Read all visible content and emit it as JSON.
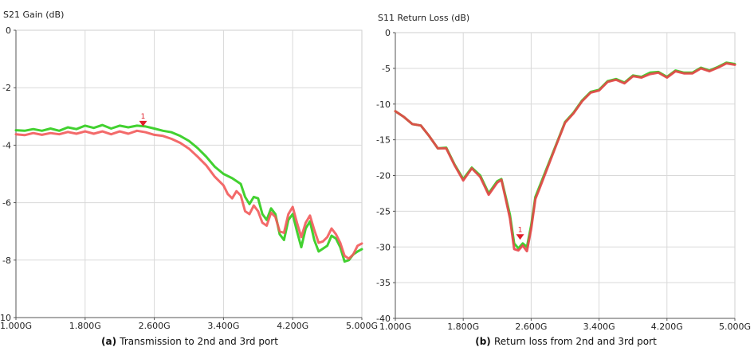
{
  "chart_data": [
    {
      "type": "line",
      "title": "S21 Gain (dB)",
      "caption_prefix": "(a)",
      "caption_text": "Transmission to 2nd and 3rd port",
      "xlim": [
        1.0,
        5.0
      ],
      "ylim": [
        -10,
        0
      ],
      "xticks": [
        1.0,
        1.8,
        2.6,
        3.4,
        4.2,
        5.0
      ],
      "xtick_labels": [
        "1.000G",
        "1.800G",
        "2.600G",
        "3.400G",
        "4.200G",
        "5.000G"
      ],
      "yticks": [
        0,
        -2,
        -4,
        -6,
        -8,
        -10
      ],
      "ytick_labels": [
        "0",
        "-2",
        "-4",
        "-6",
        "-8",
        "-10"
      ],
      "grid": true,
      "marker": {
        "label": "1",
        "x": 2.47,
        "y": -3.35
      },
      "series": [
        {
          "color": "#2ecc1a",
          "points": [
            [
              1.0,
              -3.48
            ],
            [
              1.1,
              -3.5
            ],
            [
              1.2,
              -3.44
            ],
            [
              1.3,
              -3.5
            ],
            [
              1.4,
              -3.42
            ],
            [
              1.5,
              -3.5
            ],
            [
              1.6,
              -3.38
            ],
            [
              1.7,
              -3.44
            ],
            [
              1.8,
              -3.32
            ],
            [
              1.9,
              -3.4
            ],
            [
              2.0,
              -3.3
            ],
            [
              2.1,
              -3.42
            ],
            [
              2.2,
              -3.32
            ],
            [
              2.3,
              -3.38
            ],
            [
              2.4,
              -3.32
            ],
            [
              2.5,
              -3.35
            ],
            [
              2.6,
              -3.42
            ],
            [
              2.7,
              -3.5
            ],
            [
              2.8,
              -3.55
            ],
            [
              2.9,
              -3.68
            ],
            [
              3.0,
              -3.85
            ],
            [
              3.1,
              -4.1
            ],
            [
              3.2,
              -4.4
            ],
            [
              3.3,
              -4.75
            ],
            [
              3.4,
              -5.0
            ],
            [
              3.5,
              -5.15
            ],
            [
              3.6,
              -5.35
            ],
            [
              3.65,
              -5.8
            ],
            [
              3.7,
              -6.05
            ],
            [
              3.75,
              -5.8
            ],
            [
              3.8,
              -5.85
            ],
            [
              3.85,
              -6.4
            ],
            [
              3.9,
              -6.6
            ],
            [
              3.95,
              -6.2
            ],
            [
              4.0,
              -6.4
            ],
            [
              4.05,
              -7.1
            ],
            [
              4.1,
              -7.3
            ],
            [
              4.15,
              -6.6
            ],
            [
              4.2,
              -6.4
            ],
            [
              4.25,
              -7.0
            ],
            [
              4.3,
              -7.55
            ],
            [
              4.35,
              -6.9
            ],
            [
              4.4,
              -6.65
            ],
            [
              4.45,
              -7.3
            ],
            [
              4.5,
              -7.7
            ],
            [
              4.55,
              -7.6
            ],
            [
              4.6,
              -7.5
            ],
            [
              4.65,
              -7.15
            ],
            [
              4.7,
              -7.25
            ],
            [
              4.75,
              -7.55
            ],
            [
              4.8,
              -8.05
            ],
            [
              4.85,
              -8.0
            ],
            [
              4.9,
              -7.8
            ],
            [
              4.95,
              -7.7
            ],
            [
              5.0,
              -7.62
            ]
          ]
        },
        {
          "color": "#f25a5a",
          "points": [
            [
              1.0,
              -3.62
            ],
            [
              1.1,
              -3.65
            ],
            [
              1.2,
              -3.58
            ],
            [
              1.3,
              -3.64
            ],
            [
              1.4,
              -3.58
            ],
            [
              1.5,
              -3.62
            ],
            [
              1.6,
              -3.54
            ],
            [
              1.7,
              -3.6
            ],
            [
              1.8,
              -3.52
            ],
            [
              1.9,
              -3.6
            ],
            [
              2.0,
              -3.52
            ],
            [
              2.1,
              -3.62
            ],
            [
              2.2,
              -3.52
            ],
            [
              2.3,
              -3.6
            ],
            [
              2.4,
              -3.5
            ],
            [
              2.5,
              -3.55
            ],
            [
              2.6,
              -3.64
            ],
            [
              2.7,
              -3.68
            ],
            [
              2.8,
              -3.78
            ],
            [
              2.9,
              -3.92
            ],
            [
              3.0,
              -4.12
            ],
            [
              3.1,
              -4.4
            ],
            [
              3.2,
              -4.7
            ],
            [
              3.3,
              -5.1
            ],
            [
              3.4,
              -5.4
            ],
            [
              3.45,
              -5.7
            ],
            [
              3.5,
              -5.85
            ],
            [
              3.55,
              -5.6
            ],
            [
              3.6,
              -5.75
            ],
            [
              3.65,
              -6.3
            ],
            [
              3.7,
              -6.4
            ],
            [
              3.75,
              -6.1
            ],
            [
              3.8,
              -6.3
            ],
            [
              3.85,
              -6.7
            ],
            [
              3.9,
              -6.8
            ],
            [
              3.95,
              -6.35
            ],
            [
              4.0,
              -6.5
            ],
            [
              4.05,
              -7.0
            ],
            [
              4.1,
              -7.05
            ],
            [
              4.15,
              -6.4
            ],
            [
              4.2,
              -6.15
            ],
            [
              4.25,
              -6.7
            ],
            [
              4.3,
              -7.2
            ],
            [
              4.35,
              -6.7
            ],
            [
              4.4,
              -6.45
            ],
            [
              4.45,
              -6.95
            ],
            [
              4.5,
              -7.4
            ],
            [
              4.55,
              -7.35
            ],
            [
              4.6,
              -7.2
            ],
            [
              4.65,
              -6.9
            ],
            [
              4.7,
              -7.1
            ],
            [
              4.75,
              -7.4
            ],
            [
              4.8,
              -7.85
            ],
            [
              4.85,
              -7.95
            ],
            [
              4.9,
              -7.8
            ],
            [
              4.95,
              -7.5
            ],
            [
              5.0,
              -7.42
            ]
          ]
        }
      ]
    },
    {
      "type": "line",
      "title": "S11 Return Loss (dB)",
      "caption_prefix": "(b)",
      "caption_text": "Return loss from 2nd and 3rd port",
      "xlim": [
        1.0,
        5.0
      ],
      "ylim": [
        -40,
        0
      ],
      "xticks": [
        1.0,
        1.8,
        2.6,
        3.4,
        4.2,
        5.0
      ],
      "xtick_labels": [
        "1.000G",
        "1.800G",
        "2.600G",
        "3.400G",
        "4.200G",
        "5.000G"
      ],
      "yticks": [
        0,
        -5,
        -10,
        -15,
        -20,
        -25,
        -30,
        -35,
        -40
      ],
      "ytick_labels": [
        "0",
        "-5",
        "-10",
        "-15",
        "-20",
        "-25",
        "-30",
        "-35",
        "-40"
      ],
      "grid": true,
      "marker": {
        "label": "1",
        "x": 2.47,
        "y": -29.0
      },
      "series": [
        {
          "color": "#2ecc1a",
          "points": [
            [
              1.0,
              -11.0
            ],
            [
              1.1,
              -11.8
            ],
            [
              1.2,
              -12.8
            ],
            [
              1.3,
              -13.0
            ],
            [
              1.4,
              -14.5
            ],
            [
              1.5,
              -16.2
            ],
            [
              1.6,
              -16.1
            ],
            [
              1.7,
              -18.5
            ],
            [
              1.8,
              -20.5
            ],
            [
              1.9,
              -18.9
            ],
            [
              2.0,
              -20.0
            ],
            [
              2.1,
              -22.5
            ],
            [
              2.2,
              -20.8
            ],
            [
              2.25,
              -20.5
            ],
            [
              2.3,
              -23.0
            ],
            [
              2.35,
              -25.5
            ],
            [
              2.4,
              -29.5
            ],
            [
              2.45,
              -30.2
            ],
            [
              2.5,
              -29.5
            ],
            [
              2.55,
              -30.0
            ],
            [
              2.6,
              -27.0
            ],
            [
              2.65,
              -23.0
            ],
            [
              2.7,
              -21.5
            ],
            [
              2.8,
              -18.5
            ],
            [
              2.9,
              -15.5
            ],
            [
              3.0,
              -12.5
            ],
            [
              3.1,
              -11.2
            ],
            [
              3.2,
              -9.5
            ],
            [
              3.3,
              -8.3
            ],
            [
              3.4,
              -8.0
            ],
            [
              3.5,
              -6.8
            ],
            [
              3.6,
              -6.5
            ],
            [
              3.7,
              -7.0
            ],
            [
              3.8,
              -6.0
            ],
            [
              3.9,
              -6.2
            ],
            [
              4.0,
              -5.6
            ],
            [
              4.1,
              -5.5
            ],
            [
              4.2,
              -6.2
            ],
            [
              4.3,
              -5.3
            ],
            [
              4.4,
              -5.6
            ],
            [
              4.5,
              -5.6
            ],
            [
              4.6,
              -4.9
            ],
            [
              4.7,
              -5.3
            ],
            [
              4.8,
              -4.8
            ],
            [
              4.9,
              -4.2
            ],
            [
              5.0,
              -4.4
            ]
          ]
        },
        {
          "color": "#e8454a",
          "points": [
            [
              1.0,
              -11.0
            ],
            [
              1.1,
              -11.8
            ],
            [
              1.2,
              -12.8
            ],
            [
              1.3,
              -13.0
            ],
            [
              1.4,
              -14.5
            ],
            [
              1.5,
              -16.2
            ],
            [
              1.6,
              -16.2
            ],
            [
              1.7,
              -18.6
            ],
            [
              1.8,
              -20.7
            ],
            [
              1.9,
              -19.0
            ],
            [
              2.0,
              -20.2
            ],
            [
              2.1,
              -22.7
            ],
            [
              2.2,
              -21.0
            ],
            [
              2.25,
              -20.6
            ],
            [
              2.3,
              -23.3
            ],
            [
              2.35,
              -26.0
            ],
            [
              2.4,
              -30.3
            ],
            [
              2.45,
              -30.5
            ],
            [
              2.5,
              -29.8
            ],
            [
              2.55,
              -30.6
            ],
            [
              2.6,
              -27.5
            ],
            [
              2.65,
              -23.3
            ],
            [
              2.7,
              -21.8
            ],
            [
              2.8,
              -18.7
            ],
            [
              2.9,
              -15.6
            ],
            [
              3.0,
              -12.6
            ],
            [
              3.1,
              -11.3
            ],
            [
              3.2,
              -9.6
            ],
            [
              3.3,
              -8.4
            ],
            [
              3.4,
              -8.1
            ],
            [
              3.5,
              -6.9
            ],
            [
              3.6,
              -6.6
            ],
            [
              3.7,
              -7.1
            ],
            [
              3.8,
              -6.1
            ],
            [
              3.9,
              -6.3
            ],
            [
              4.0,
              -5.8
            ],
            [
              4.1,
              -5.6
            ],
            [
              4.2,
              -6.3
            ],
            [
              4.3,
              -5.4
            ],
            [
              4.4,
              -5.7
            ],
            [
              4.5,
              -5.7
            ],
            [
              4.6,
              -5.0
            ],
            [
              4.7,
              -5.4
            ],
            [
              4.8,
              -4.9
            ],
            [
              4.9,
              -4.3
            ],
            [
              5.0,
              -4.5
            ]
          ]
        }
      ]
    }
  ]
}
